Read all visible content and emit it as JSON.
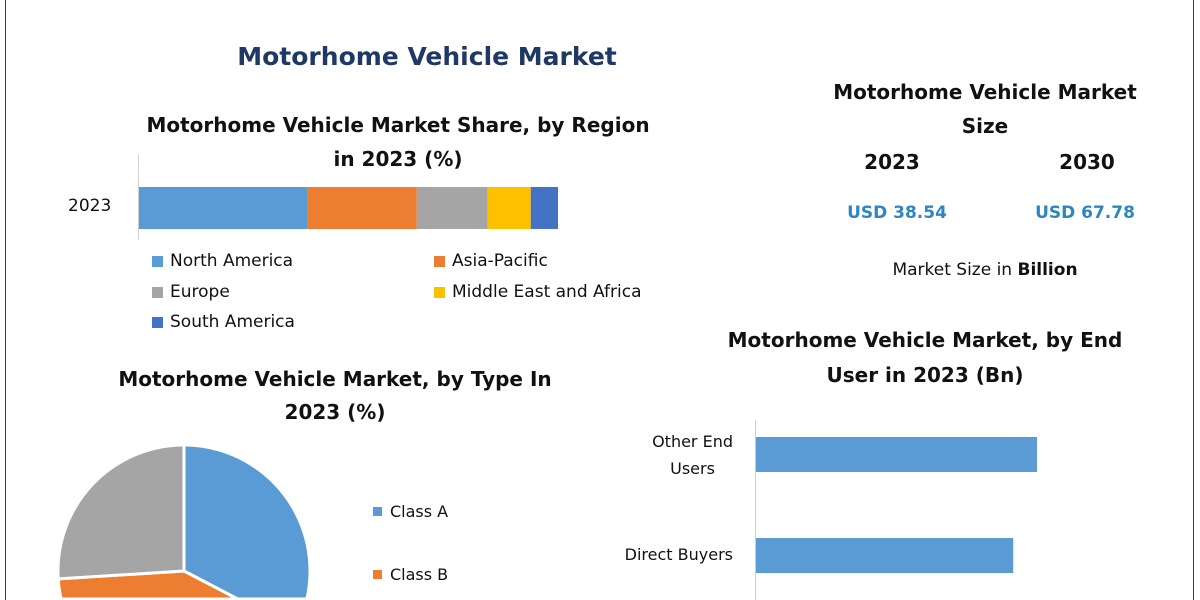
{
  "main_title": "Motorhome Vehicle Market",
  "colors": {
    "blue": "#5b9bd5",
    "orange": "#ed7d31",
    "gray": "#a5a5a5",
    "yellow": "#ffc000",
    "dark_blue": "#4472c4",
    "title": "#1f3864",
    "value": "#2e86c1"
  },
  "market_size": {
    "title_line1": "Motorhome Vehicle Market",
    "title_line2": "Size",
    "years": [
      "2023",
      "2030"
    ],
    "values": [
      "USD 38.54",
      "USD 67.78"
    ],
    "unit_prefix": "Market Size in ",
    "unit_bold": "Billion"
  },
  "chart_data": [
    {
      "type": "bar",
      "orientation": "horizontal-stacked",
      "title": "Motorhome Vehicle Market Share, by Region in 2023 (%)",
      "title_line1": "Motorhome Vehicle Market Share, by Region",
      "title_line2": "in 2023 (%)",
      "categories": [
        "2023"
      ],
      "series": [
        {
          "name": "North America",
          "values": [
            40.3
          ],
          "color": "#5b9bd5"
        },
        {
          "name": "Asia-Pacific",
          "values": [
            26.0
          ],
          "color": "#ed7d31"
        },
        {
          "name": "Europe",
          "values": [
            16.9
          ],
          "color": "#a5a5a5"
        },
        {
          "name": "Middle East and Africa",
          "values": [
            10.3
          ],
          "color": "#ffc000"
        },
        {
          "name": "South America",
          "values": [
            6.5
          ],
          "color": "#4472c4"
        }
      ],
      "legend": "bottom"
    },
    {
      "type": "pie",
      "title": "Motorhome Vehicle Market, by Type In 2023 (%)",
      "title_line1": "Motorhome Vehicle Market, by Type In",
      "title_line2": "2023 (%)",
      "slices": [
        {
          "name": "Class A",
          "value": 43,
          "color": "#5b9bd5"
        },
        {
          "name": "Class B",
          "value": 31,
          "color": "#ed7d31"
        },
        {
          "name": "",
          "value": 26,
          "color": "#a5a5a5"
        }
      ],
      "legend": "right"
    },
    {
      "type": "bar",
      "orientation": "horizontal",
      "title": "Motorhome Vehicle Market, by End User in 2023 (Bn)",
      "title_line1": "Motorhome Vehicle Market, by End",
      "title_line2": "User in 2023 (Bn)",
      "categories": [
        "Other End Users",
        "Direct Buyers"
      ],
      "category_lines": [
        [
          "Other End",
          "Users"
        ],
        [
          "Direct Buyers"
        ]
      ],
      "values": [
        20.1,
        18.4
      ],
      "color": "#5b9bd5",
      "xlim": [
        0,
        22
      ]
    }
  ]
}
